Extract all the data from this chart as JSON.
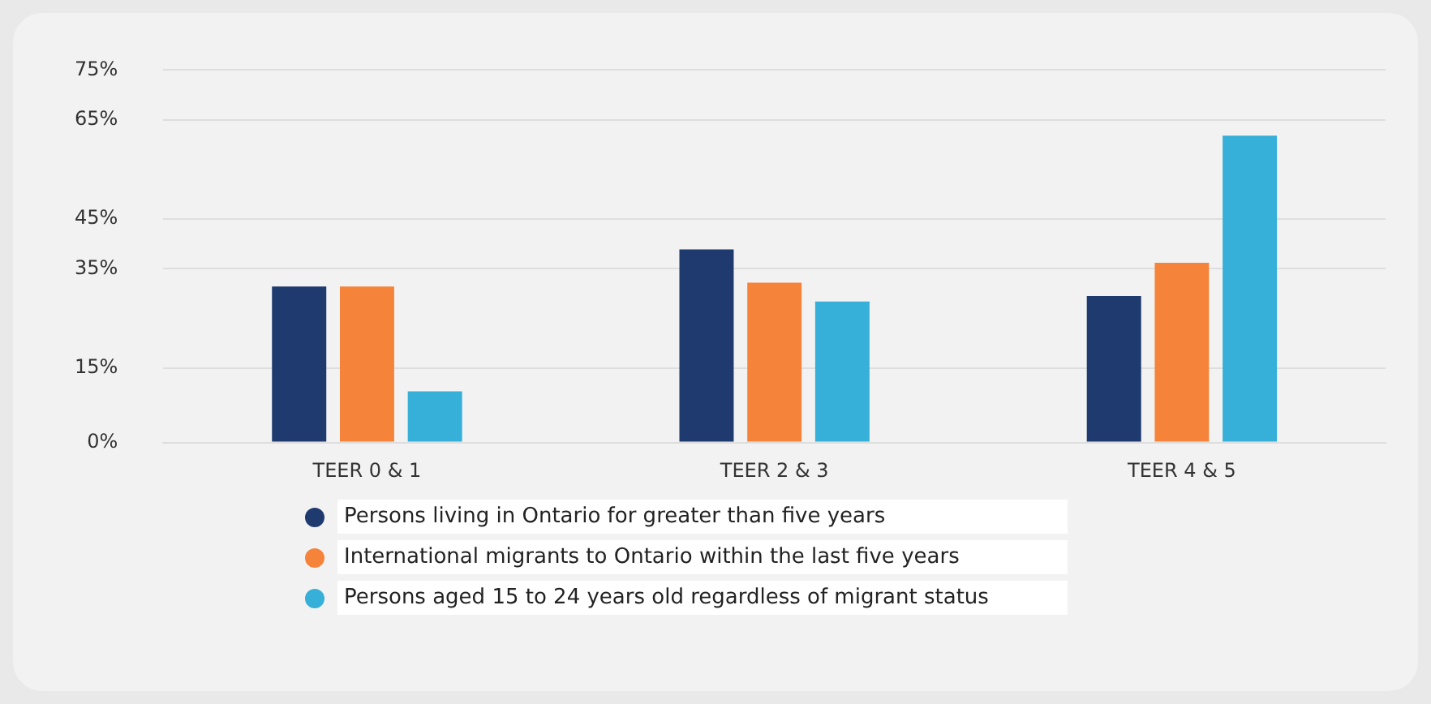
{
  "chart_data": {
    "type": "bar",
    "categories": [
      "TEER 0 & 1",
      "TEER 2 & 3",
      "TEER 4 & 5"
    ],
    "series": [
      {
        "name": "Persons living in Ontario for greater than five years",
        "color": "#1f3a6e",
        "values": [
          31.4,
          38.9,
          29.5
        ]
      },
      {
        "name": "International migrants to Ontario within the last five years",
        "color": "#f5843a",
        "values": [
          31.4,
          32.2,
          36.2
        ]
      },
      {
        "name": "Persons aged 15 to 24 years old regardless of migrant status",
        "color": "#36afd9",
        "values": [
          10.3,
          28.4,
          61.8
        ]
      }
    ],
    "ylim": [
      0,
      75
    ],
    "yticks": [
      {
        "value": 0,
        "label": "0%"
      },
      {
        "value": 15,
        "label": "15%"
      },
      {
        "value": 35,
        "label": "35%"
      },
      {
        "value": 45,
        "label": "45%"
      },
      {
        "value": 65,
        "label": "65%"
      },
      {
        "value": 75,
        "label": "75%"
      }
    ],
    "grid": "y",
    "legend": "bottom"
  }
}
